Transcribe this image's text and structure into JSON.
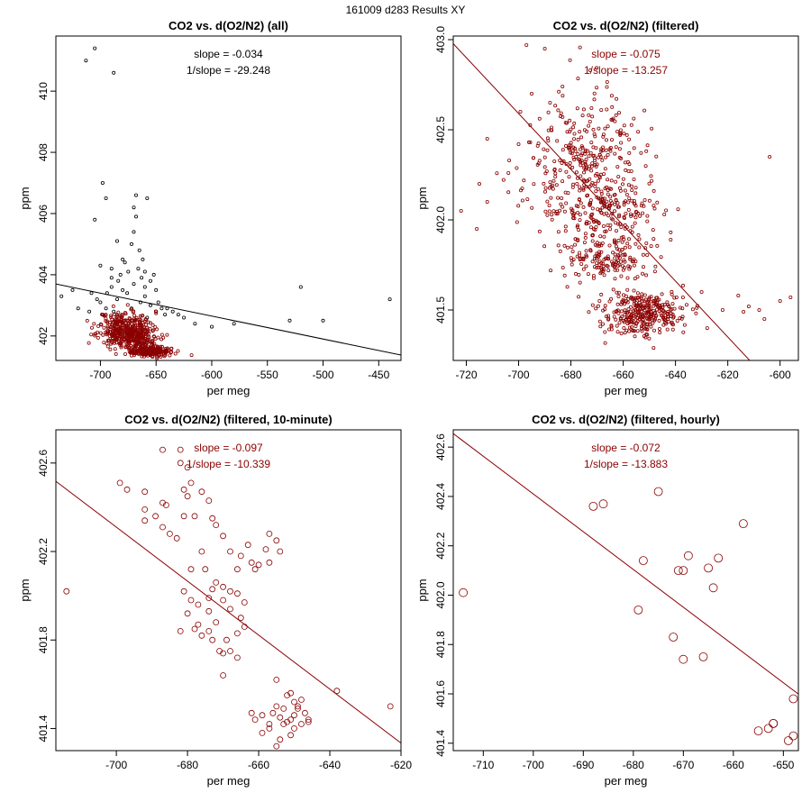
{
  "page": {
    "title": "161009   d283   Results XY"
  },
  "colors": {
    "axis": "#000000",
    "filtered": "#8B0000",
    "all": "#000000"
  },
  "chart_data": [
    {
      "type": "scatter",
      "title": "CO2 vs. d(O2/N2) (all)",
      "xlabel": "per meg",
      "ylabel": "ppm",
      "xlim": [
        -740,
        -430
      ],
      "ylim": [
        401.2,
        411.8
      ],
      "xticks": [
        -700,
        -650,
        -600,
        -550,
        -500,
        -450
      ],
      "yticks": [
        402,
        404,
        406,
        408,
        410
      ],
      "annotations": [
        "slope = -0.034",
        "1/slope = -29.248"
      ],
      "fit_line": {
        "slope": -0.0075,
        "intercept": 398.15
      },
      "marker_size": 1.6,
      "series": [
        {
          "name": "all",
          "color": "#000000",
          "points": [
            [
              -713,
              411
            ],
            [
              -705,
              411.4
            ],
            [
              -688,
              410.6
            ],
            [
              -698,
              407
            ],
            [
              -695,
              406.5
            ],
            [
              -705,
              405.8
            ],
            [
              -668,
              406.6
            ],
            [
              -658,
              406.5
            ],
            [
              -670,
              406.2
            ],
            [
              -668,
              405.9
            ],
            [
              -670,
              405.4
            ],
            [
              -685,
              405.1
            ],
            [
              -672,
              405
            ],
            [
              -665,
              404.8
            ],
            [
              -662,
              404.5
            ],
            [
              -680,
              404.5
            ],
            [
              -690,
              404.2
            ],
            [
              -700,
              404.3
            ],
            [
              -675,
              404.1
            ],
            [
              -660,
              404.1
            ],
            [
              -655,
              403.8
            ],
            [
              -650,
              403.5
            ],
            [
              -690,
              403.6
            ],
            [
              -708,
              403.4
            ],
            [
              -700,
              403.1
            ],
            [
              -685,
              403.2
            ],
            [
              -660,
              403.3
            ],
            [
              -648,
              403.1
            ],
            [
              -640,
              402.9
            ],
            [
              -630,
              402.7
            ],
            [
              -645,
              402.9
            ],
            [
              -720,
              402.9
            ],
            [
              -725,
              403.5
            ],
            [
              -735,
              403.3
            ],
            [
              -520,
              403.6
            ],
            [
              -530,
              402.5
            ],
            [
              -500,
              402.5
            ],
            [
              -440,
              403.2
            ],
            [
              -580,
              402.4
            ],
            [
              -600,
              402.3
            ],
            [
              -615,
              402.4
            ],
            [
              -625,
              402.6
            ],
            [
              -710,
              402.8
            ],
            [
              -695,
              402.9
            ],
            [
              -680,
              403.5
            ],
            [
              -670,
              403.7
            ],
            [
              -663,
              403.9
            ],
            [
              -655,
              403
            ],
            [
              -642,
              402.7
            ],
            [
              -635,
              402.8
            ],
            [
              -690,
              403.9
            ],
            [
              -703,
              403.2
            ],
            [
              -682,
              404
            ],
            [
              -676,
              403.4
            ],
            [
              -664,
              403.1
            ],
            [
              -650,
              402.8
            ],
            [
              -658,
              402.6
            ],
            [
              -672,
              402.9
            ],
            [
              -688,
              402.8
            ],
            [
              -698,
              402.7
            ],
            [
              -666,
              404.2
            ],
            [
              -652,
              404
            ],
            [
              -678,
              404.4
            ],
            [
              -684,
              403.8
            ],
            [
              -694,
              403.4
            ],
            [
              -660,
              403.6
            ]
          ]
        },
        {
          "name": "filtered",
          "color": "#8B0000",
          "seed": 11,
          "generated": true,
          "clusters": [
            {
              "cx": -678,
              "cy": 402.25,
              "sx": 12,
              "sy": 0.28,
              "n": 320
            },
            {
              "cx": -668,
              "cy": 401.9,
              "sx": 10,
              "sy": 0.2,
              "n": 160
            },
            {
              "cx": -655,
              "cy": 401.5,
              "sx": 8,
              "sy": 0.08,
              "n": 220
            }
          ]
        }
      ]
    },
    {
      "type": "scatter",
      "title": "CO2 vs. d(O2/N2) (filtered)",
      "xlabel": "per meg",
      "ylabel": "ppm",
      "xlim": [
        -725,
        -593
      ],
      "ylim": [
        401.22,
        403.02
      ],
      "xticks": [
        -720,
        -700,
        -680,
        -660,
        -640,
        -620,
        -600
      ],
      "yticks": [
        401.5,
        402.0,
        402.5,
        403.0
      ],
      "annotations": [
        "slope = -0.075",
        "1/slope = -13.257"
      ],
      "fit_line": {
        "slope": -0.0155,
        "intercept": 391.74
      },
      "marker_size": 1.6,
      "series": [
        {
          "name": "filtered",
          "color": "#8B0000",
          "seed": 23,
          "generated": true,
          "clusters": [
            {
              "cx": -676,
              "cy": 402.28,
              "sx": 11,
              "sy": 0.22,
              "n": 360
            },
            {
              "cx": -665,
              "cy": 401.95,
              "sx": 10,
              "sy": 0.17,
              "n": 220
            },
            {
              "cx": -668,
              "cy": 401.77,
              "sx": 7,
              "sy": 0.04,
              "n": 70
            },
            {
              "cx": -652,
              "cy": 401.48,
              "sx": 8,
              "sy": 0.06,
              "n": 320
            }
          ],
          "points": [
            [
              -715,
              402.2
            ],
            [
              -716,
              401.95
            ],
            [
              -722,
              402.05
            ],
            [
              -712,
              402.45
            ],
            [
              -712,
              402.1
            ],
            [
              -700,
              402.42
            ],
            [
              -697,
              402.97
            ],
            [
              -695,
              402.7
            ],
            [
              -690,
              402.95
            ],
            [
              -688,
              402.65
            ],
            [
              -604,
              402.35
            ],
            [
              -600,
              401.55
            ],
            [
              -606,
              401.45
            ],
            [
              -612,
              401.52
            ],
            [
              -616,
              401.58
            ],
            [
              -622,
              401.5
            ],
            [
              -630,
              401.6
            ],
            [
              -596,
              401.57
            ],
            [
              -608,
              401.5
            ],
            [
              -614,
              401.49
            ]
          ]
        }
      ]
    },
    {
      "type": "scatter",
      "title": "CO2 vs. d(O2/N2) (filtered, 10-minute)",
      "xlabel": "per meg",
      "ylabel": "ppm",
      "xlim": [
        -717,
        -620
      ],
      "ylim": [
        401.3,
        402.75
      ],
      "xticks": [
        -700,
        -680,
        -660,
        -640,
        -620
      ],
      "yticks": [
        401.4,
        401.8,
        402.2,
        402.6
      ],
      "annotations": [
        "slope = -0.097",
        "1/slope = -10.339"
      ],
      "fit_line": {
        "slope": -0.0122,
        "intercept": 393.77
      },
      "marker_size": 3,
      "series": [
        {
          "name": "filtered-10min",
          "color": "#8B0000",
          "points": [
            [
              -714,
              402.02
            ],
            [
              -699,
              402.51
            ],
            [
              -697,
              402.48
            ],
            [
              -692,
              402.47
            ],
            [
              -692,
              402.39
            ],
            [
              -692,
              402.34
            ],
            [
              -689,
              402.36
            ],
            [
              -687,
              402.66
            ],
            [
              -687,
              402.42
            ],
            [
              -686,
              402.41
            ],
            [
              -687,
              402.31
            ],
            [
              -685,
              402.28
            ],
            [
              -683,
              402.26
            ],
            [
              -682,
              402.66
            ],
            [
              -682,
              402.6
            ],
            [
              -680,
              402.58
            ],
            [
              -679,
              402.51
            ],
            [
              -681,
              402.48
            ],
            [
              -680,
              402.45
            ],
            [
              -678,
              402.36
            ],
            [
              -681,
              402.36
            ],
            [
              -676,
              402.47
            ],
            [
              -674,
              402.43
            ],
            [
              -673,
              402.35
            ],
            [
              -672,
              402.32
            ],
            [
              -670,
              402.27
            ],
            [
              -668,
              402.2
            ],
            [
              -665,
              402.18
            ],
            [
              -663,
              402.23
            ],
            [
              -662,
              402.15
            ],
            [
              -661,
              402.12
            ],
            [
              -666,
              402.12
            ],
            [
              -676,
              402.2
            ],
            [
              -675,
              402.12
            ],
            [
              -679,
              402.12
            ],
            [
              -681,
              402.02
            ],
            [
              -679,
              401.98
            ],
            [
              -677,
              401.96
            ],
            [
              -674,
              401.99
            ],
            [
              -674,
              401.93
            ],
            [
              -673,
              402.03
            ],
            [
              -672,
              402.06
            ],
            [
              -670,
              402.04
            ],
            [
              -668,
              402.02
            ],
            [
              -666,
              402.01
            ],
            [
              -670,
              401.98
            ],
            [
              -668,
              401.94
            ],
            [
              -664,
              401.97
            ],
            [
              -665,
              401.9
            ],
            [
              -672,
              401.88
            ],
            [
              -677,
              401.87
            ],
            [
              -676,
              401.82
            ],
            [
              -673,
              401.8
            ],
            [
              -669,
              401.8
            ],
            [
              -666,
              401.83
            ],
            [
              -664,
              401.86
            ],
            [
              -671,
              401.75
            ],
            [
              -670,
              401.74
            ],
            [
              -668,
              401.75
            ],
            [
              -666,
              401.72
            ],
            [
              -680,
              401.92
            ],
            [
              -682,
              401.84
            ],
            [
              -678,
              401.85
            ],
            [
              -670,
              401.64
            ],
            [
              -674,
              401.84
            ],
            [
              -658,
              402.21
            ],
            [
              -657,
              402.28
            ],
            [
              -655,
              402.25
            ],
            [
              -654,
              402.2
            ],
            [
              -657,
              402.15
            ],
            [
              -660,
              402.14
            ],
            [
              -655,
              401.62
            ],
            [
              -652,
              401.55
            ],
            [
              -651,
              401.56
            ],
            [
              -650,
              401.52
            ],
            [
              -649,
              401.5
            ],
            [
              -648,
              401.53
            ],
            [
              -647,
              401.47
            ],
            [
              -646,
              401.44
            ],
            [
              -650,
              401.46
            ],
            [
              -651,
              401.44
            ],
            [
              -653,
              401.42
            ],
            [
              -653,
              401.49
            ],
            [
              -655,
              401.5
            ],
            [
              -656,
              401.47
            ],
            [
              -657,
              401.42
            ],
            [
              -659,
              401.46
            ],
            [
              -661,
              401.44
            ],
            [
              -662,
              401.47
            ],
            [
              -654,
              401.45
            ],
            [
              -652,
              401.43
            ],
            [
              -650,
              401.4
            ],
            [
              -648,
              401.42
            ],
            [
              -651,
              401.37
            ],
            [
              -654,
              401.35
            ],
            [
              -657,
              401.4
            ],
            [
              -655,
              401.32
            ],
            [
              -638,
              401.57
            ],
            [
              -623,
              401.5
            ],
            [
              -649,
              401.49
            ],
            [
              -646,
              401.43
            ],
            [
              -659,
              401.38
            ]
          ]
        }
      ]
    },
    {
      "type": "scatter",
      "title": "CO2 vs. d(O2/N2) (filtered, hourly)",
      "xlabel": "per meg",
      "ylabel": "ppm",
      "xlim": [
        -716,
        -647
      ],
      "ylim": [
        401.37,
        402.67
      ],
      "xticks": [
        -710,
        -700,
        -690,
        -680,
        -670,
        -660,
        -650
      ],
      "yticks": [
        401.4,
        401.6,
        401.8,
        402.0,
        402.2,
        402.4,
        402.6
      ],
      "annotations": [
        "slope = -0.072",
        "1/slope = -13.883"
      ],
      "fit_line": {
        "slope": -0.0153,
        "intercept": 391.7
      },
      "marker_size": 4.5,
      "series": [
        {
          "name": "filtered-hourly",
          "color": "#8B0000",
          "points": [
            [
              -714,
              402.01
            ],
            [
              -688,
              402.36
            ],
            [
              -686,
              402.37
            ],
            [
              -675,
              402.42
            ],
            [
              -679,
              401.94
            ],
            [
              -678,
              402.14
            ],
            [
              -669,
              402.16
            ],
            [
              -671,
              402.1
            ],
            [
              -670,
              402.1
            ],
            [
              -665,
              402.11
            ],
            [
              -663,
              402.15
            ],
            [
              -664,
              402.03
            ],
            [
              -658,
              402.29
            ],
            [
              -672,
              401.83
            ],
            [
              -670,
              401.74
            ],
            [
              -666,
              401.75
            ],
            [
              -655,
              401.45
            ],
            [
              -653,
              401.46
            ],
            [
              -652,
              401.48
            ],
            [
              -652,
              401.48
            ],
            [
              -649,
              401.41
            ],
            [
              -648,
              401.43
            ],
            [
              -648,
              401.58
            ]
          ]
        }
      ]
    }
  ]
}
